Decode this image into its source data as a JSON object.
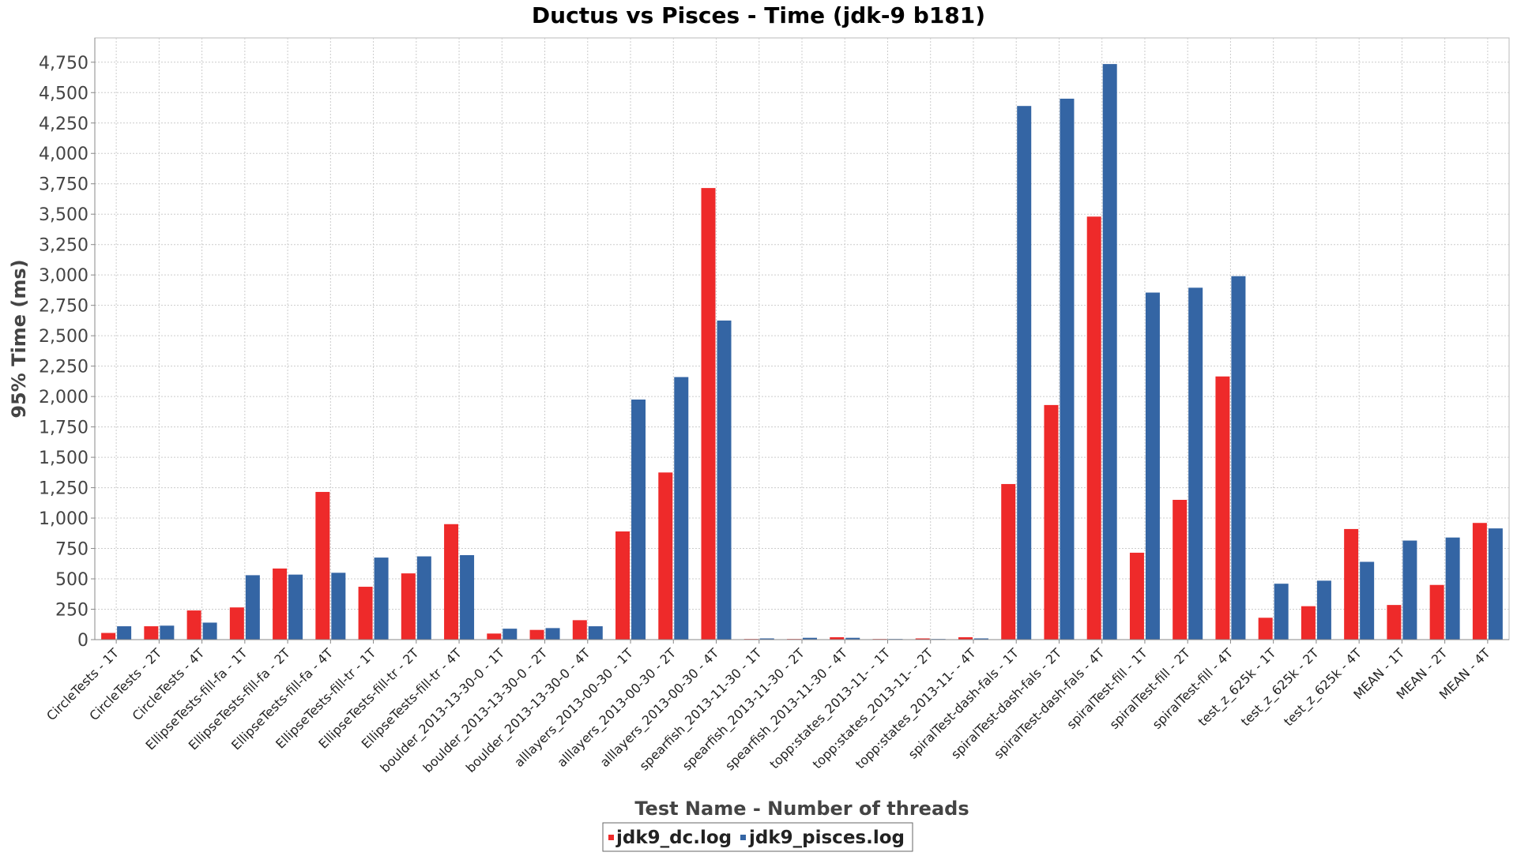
{
  "chart_data": {
    "type": "bar",
    "title": "Ductus vs Pisces - Time (jdk-9 b181)",
    "xlabel": "Test Name - Number of threads",
    "ylabel": "95% Time (ms)",
    "ylim": [
      0,
      4950
    ],
    "yticks": [
      0,
      250,
      500,
      750,
      1000,
      1250,
      1500,
      1750,
      2000,
      2250,
      2500,
      2750,
      3000,
      3250,
      3500,
      3750,
      4000,
      4250,
      4500,
      4750
    ],
    "ytick_labels": [
      "0",
      "250",
      "500",
      "750",
      "1,000",
      "1,250",
      "1,500",
      "1,750",
      "2,000",
      "2,250",
      "2,500",
      "2,750",
      "3,000",
      "3,250",
      "3,500",
      "3,750",
      "4,000",
      "4,250",
      "4,500",
      "4,750"
    ],
    "grid": true,
    "legend_position": "bottom",
    "categories": [
      "CircleTests - 1T",
      "CircleTests - 2T",
      "CircleTests - 4T",
      "EllipseTests-fill-fa - 1T",
      "EllipseTests-fill-fa - 2T",
      "EllipseTests-fill-fa - 4T",
      "EllipseTests-fill-tr - 1T",
      "EllipseTests-fill-tr - 2T",
      "EllipseTests-fill-tr - 4T",
      "boulder_2013-13-30-0 - 1T",
      "boulder_2013-13-30-0 - 2T",
      "boulder_2013-13-30-0 - 4T",
      "alllayers_2013-00-30 - 1T",
      "alllayers_2013-00-30 - 2T",
      "alllayers_2013-00-30 - 4T",
      "spearfish_2013-11-30 - 1T",
      "spearfish_2013-11-30 - 2T",
      "spearfish_2013-11-30 - 4T",
      "topp:states_2013-11- - 1T",
      "topp:states_2013-11- - 2T",
      "topp:states_2013-11- - 4T",
      "spiralTest-dash-fals - 1T",
      "spiralTest-dash-fals - 2T",
      "spiralTest-dash-fals - 4T",
      "spiralTest-fill - 1T",
      "spiralTest-fill - 2T",
      "spiralTest-fill - 4T",
      "test_z_625k - 1T",
      "test_z_625k - 2T",
      "test_z_625k - 4T",
      "MEAN - 1T",
      "MEAN - 2T",
      "MEAN - 4T"
    ],
    "series": [
      {
        "name": "jdk9_dc.log",
        "color": "#ee2a2a",
        "values": [
          55,
          110,
          240,
          265,
          585,
          1215,
          435,
          545,
          950,
          50,
          80,
          160,
          890,
          1375,
          3715,
          5,
          5,
          20,
          5,
          10,
          20,
          1280,
          1930,
          3480,
          715,
          1150,
          2165,
          180,
          275,
          910,
          285,
          450,
          960
        ]
      },
      {
        "name": "jdk9_pisces.log",
        "color": "#3465a4",
        "values": [
          110,
          115,
          140,
          530,
          535,
          550,
          675,
          685,
          695,
          90,
          95,
          110,
          1975,
          2160,
          2625,
          10,
          15,
          15,
          5,
          5,
          10,
          4390,
          4450,
          4735,
          2855,
          2895,
          2990,
          460,
          485,
          640,
          815,
          840,
          915
        ]
      }
    ]
  }
}
